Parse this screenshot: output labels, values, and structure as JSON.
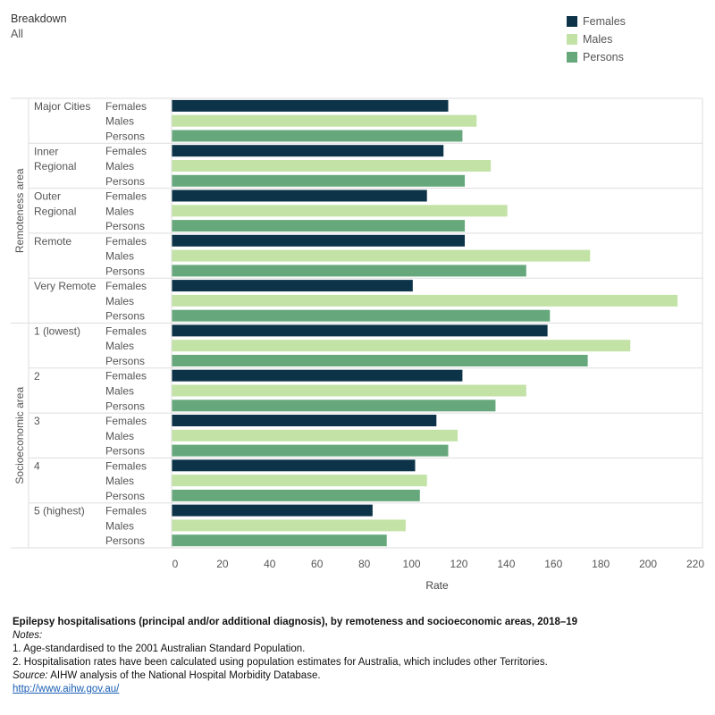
{
  "filter": {
    "label": "Breakdown",
    "value": "All"
  },
  "colors": {
    "Females": "#0d3349",
    "Males": "#c3e2a6",
    "Persons": "#66a87c"
  },
  "chart_data": {
    "type": "bar",
    "orientation": "horizontal",
    "xlabel": "Rate",
    "xlim": [
      0,
      220
    ],
    "xticks": [
      0,
      20,
      40,
      60,
      80,
      100,
      120,
      140,
      160,
      180,
      200,
      220
    ],
    "legend": [
      "Females",
      "Males",
      "Persons"
    ],
    "legend_position": "top-right",
    "sections": [
      {
        "label": "Remoteness area",
        "groups": [
          {
            "label": "Major Cities",
            "values": {
              "Females": 117,
              "Males": 129,
              "Persons": 123
            }
          },
          {
            "label": "Inner Regional",
            "values": {
              "Females": 115,
              "Males": 135,
              "Persons": 124
            }
          },
          {
            "label": "Outer Regional",
            "values": {
              "Females": 108,
              "Males": 142,
              "Persons": 124
            }
          },
          {
            "label": "Remote",
            "values": {
              "Females": 124,
              "Males": 177,
              "Persons": 150
            }
          },
          {
            "label": "Very Remote",
            "values": {
              "Females": 102,
              "Males": 214,
              "Persons": 160
            }
          }
        ]
      },
      {
        "label": "Socioeconomic area",
        "groups": [
          {
            "label": "1 (lowest)",
            "values": {
              "Females": 159,
              "Males": 194,
              "Persons": 176
            }
          },
          {
            "label": "2",
            "values": {
              "Females": 123,
              "Males": 150,
              "Persons": 137
            }
          },
          {
            "label": "3",
            "values": {
              "Females": 112,
              "Males": 121,
              "Persons": 117
            }
          },
          {
            "label": "4",
            "values": {
              "Females": 103,
              "Males": 108,
              "Persons": 105
            }
          },
          {
            "label": "5 (highest)",
            "values": {
              "Females": 85,
              "Males": 99,
              "Persons": 91
            }
          }
        ]
      }
    ]
  },
  "footer": {
    "title": "Epilepsy hospitalisations (principal and/or additional diagnosis), by remoteness and socioeconomic areas, 2018–19",
    "notes_heading": "Notes:",
    "notes": [
      "1. Age-standardised to the 2001 Australian Standard Population.",
      "2. Hospitalisation rates have been calculated using population estimates for Australia, which includes other Territories."
    ],
    "source_heading": "Source:",
    "source_text": " AIHW analysis of the National Hospital Morbidity Database.",
    "link": "http://www.aihw.gov.au/"
  }
}
